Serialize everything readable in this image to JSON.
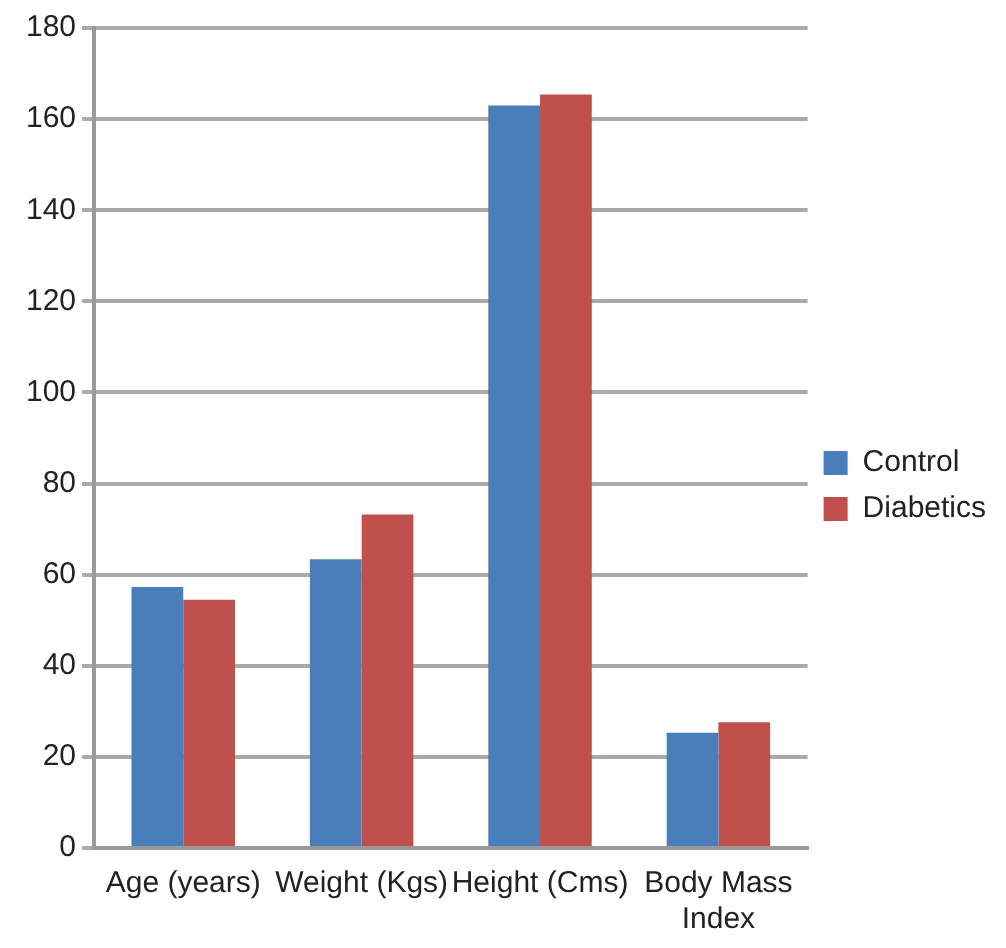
{
  "chart_data": {
    "type": "bar",
    "categories": [
      "Age (years)",
      "Weight (Kgs)",
      "Height (Cms)",
      "Body Mass Index"
    ],
    "series": [
      {
        "name": "Control",
        "color": "#4a7ebb",
        "values": [
          57.3,
          63.4,
          163,
          25.3
        ]
      },
      {
        "name": "Diabetics",
        "color": "#c0504d",
        "values": [
          54.5,
          73.2,
          165.4,
          27.6
        ]
      }
    ],
    "ylim": [
      0,
      180
    ],
    "yticks": [
      0,
      20,
      40,
      60,
      80,
      100,
      120,
      140,
      160,
      180
    ],
    "grid": "y",
    "legend": "right"
  }
}
